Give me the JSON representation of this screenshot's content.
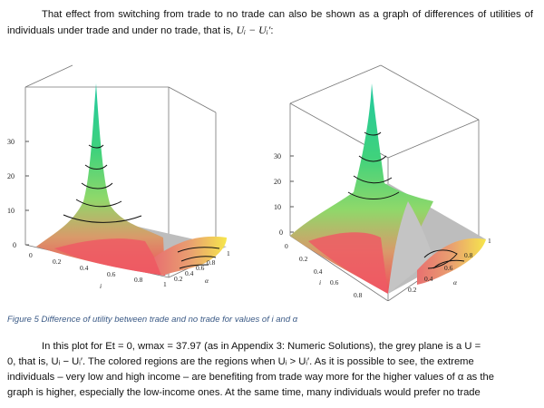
{
  "paragraph_1": {
    "text_a": "That effect from switching from trade to no trade can also be shown as a graph of differences of utilities of individuals under trade and under no trade, that is, ",
    "formula": "Uᵢ − Uᵢ′",
    "text_b": ":"
  },
  "figure": {
    "left_plot": {
      "z_ticks": [
        "30",
        "20",
        "10",
        "0"
      ],
      "i_ticks": [
        "0",
        "0.2",
        "0.4",
        "0.6",
        "0.8",
        "1"
      ],
      "alpha_ticks": [
        "0.2",
        "0.4",
        "0.6",
        "0.8",
        "1"
      ],
      "i_label": "i",
      "alpha_label": "α"
    },
    "right_plot": {
      "z_ticks": [
        "30",
        "20",
        "10",
        "0"
      ],
      "i_ticks": [
        "0",
        "0.2",
        "0.4",
        "0.6",
        "0.8"
      ],
      "alpha_ticks": [
        "0.2",
        "0.4",
        "0.6",
        "0.8",
        "1"
      ],
      "i_label": "i",
      "alpha_label": "α"
    },
    "caption": "Figure 5 Difference of utility between trade and no trade for values of i and α"
  },
  "paragraph_2": {
    "lines": [
      "In this plot for Et = 0, wmax = 37.97 (as in Appendix 3: Numeric Solutions), the grey plane is a U =",
      "0, that is, Uᵢ − Uᵢ′. The colored regions are the regions when Uᵢ > Uᵢ′. As it is possible to see, the extreme",
      "individuals – very low and high income – are benefiting from trade way more for the higher values of α as the",
      "graph is higher, especially the low-income ones. At the same time, many individuals would prefer no trade"
    ]
  }
}
